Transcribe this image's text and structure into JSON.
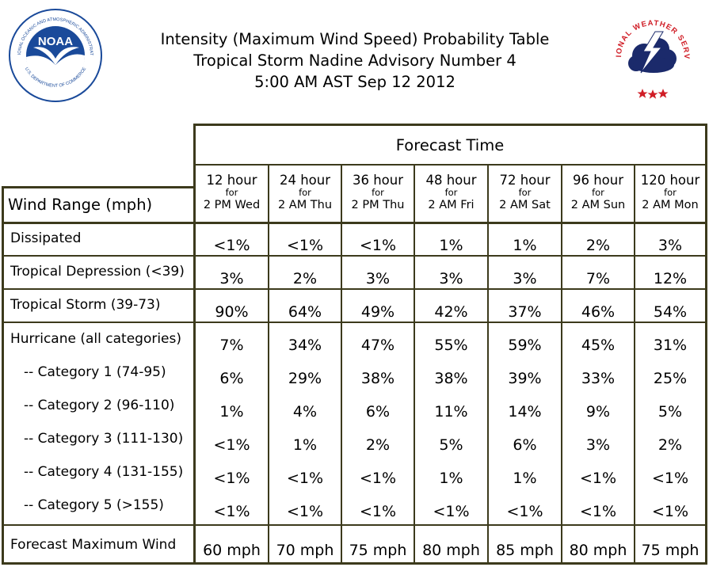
{
  "header": {
    "title_line1": "Intensity (Maximum Wind Speed) Probability Table",
    "title_line2": "Tropical Storm Nadine Advisory Number 4",
    "title_line3": "5:00 AM AST Sep 12 2012"
  },
  "logos": {
    "noaa_text": "NOAA",
    "noaa_ring_text": "NATIONAL OCEANIC AND ATMOSPHERIC ADMINISTRATION",
    "noaa_bottom_text": "U.S. DEPARTMENT OF COMMERCE",
    "nws_ring_text": "NATIONAL WEATHER SERVICE"
  },
  "table": {
    "forecast_time_label": "Forecast Time",
    "wind_range_label": "Wind Range (mph)",
    "for_label": "for",
    "columns": [
      {
        "hours": "12 hour",
        "day": "2 PM Wed"
      },
      {
        "hours": "24 hour",
        "day": "2 AM Thu"
      },
      {
        "hours": "36 hour",
        "day": "2 PM Thu"
      },
      {
        "hours": "48 hour",
        "day": "2 AM Fri"
      },
      {
        "hours": "72 hour",
        "day": "2 AM Sat"
      },
      {
        "hours": "96 hour",
        "day": "2 AM Sun"
      },
      {
        "hours": "120 hour",
        "day": "2 AM Mon"
      }
    ],
    "rows": [
      {
        "label": "Dissipated",
        "sub": false,
        "values": [
          "<1%",
          "<1%",
          "<1%",
          "1%",
          "1%",
          "2%",
          "3%"
        ]
      },
      {
        "label": "Tropical Depression (<39)",
        "sub": false,
        "values": [
          "3%",
          "2%",
          "3%",
          "3%",
          "3%",
          "7%",
          "12%"
        ]
      },
      {
        "label": "Tropical Storm (39-73)",
        "sub": false,
        "values": [
          "90%",
          "64%",
          "49%",
          "42%",
          "37%",
          "46%",
          "54%"
        ]
      },
      {
        "label": "Hurricane (all categories)",
        "sub": false,
        "values": [
          "7%",
          "34%",
          "47%",
          "55%",
          "59%",
          "45%",
          "31%"
        ]
      },
      {
        "label": "-- Category 1 (74-95)",
        "sub": true,
        "values": [
          "6%",
          "29%",
          "38%",
          "38%",
          "39%",
          "33%",
          "25%"
        ]
      },
      {
        "label": "-- Category 2 (96-110)",
        "sub": true,
        "values": [
          "1%",
          "4%",
          "6%",
          "11%",
          "14%",
          "9%",
          "5%"
        ]
      },
      {
        "label": "-- Category 3 (111-130)",
        "sub": true,
        "values": [
          "<1%",
          "1%",
          "2%",
          "5%",
          "6%",
          "3%",
          "2%"
        ]
      },
      {
        "label": "-- Category 4 (131-155)",
        "sub": true,
        "values": [
          "<1%",
          "<1%",
          "<1%",
          "1%",
          "1%",
          "<1%",
          "<1%"
        ]
      },
      {
        "label": "-- Category 5 (>155)",
        "sub": true,
        "values": [
          "<1%",
          "<1%",
          "<1%",
          "<1%",
          "<1%",
          "<1%",
          "<1%"
        ]
      }
    ],
    "max_wind": {
      "label": "Forecast Maximum Wind",
      "values": [
        "60 mph",
        "70 mph",
        "75 mph",
        "80 mph",
        "85 mph",
        "80 mph",
        "75 mph"
      ]
    }
  },
  "colors": {
    "border": "#3c3a1c",
    "noaa_blue": "#1a4a9a",
    "nws_red": "#d01d26",
    "nws_navy": "#1b2a6b"
  }
}
